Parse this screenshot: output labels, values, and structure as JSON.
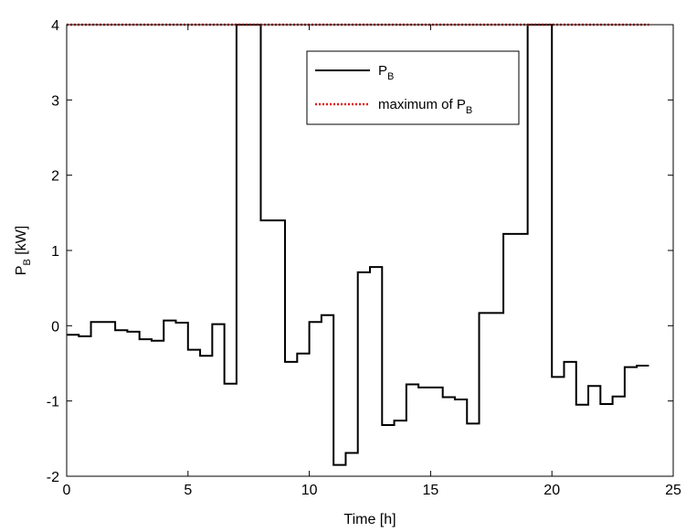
{
  "chart_data": {
    "type": "line",
    "step": true,
    "xlabel": "Time [h]",
    "ylabel": {
      "main": "P",
      "sub": "B",
      "unit": " [kW]"
    },
    "xlim": [
      0,
      25
    ],
    "ylim": [
      -2,
      4
    ],
    "xticks": [
      0,
      5,
      10,
      15,
      20,
      25
    ],
    "yticks": [
      -2,
      -1,
      0,
      1,
      2,
      3,
      4
    ],
    "grid": false,
    "legend_position": "top-center",
    "series": [
      {
        "legend": {
          "main": "P",
          "sub": "B"
        },
        "color": "#000000",
        "style": "solid",
        "x": [
          0,
          0.5,
          1,
          1.5,
          2,
          2.5,
          3,
          3.5,
          4,
          4.5,
          5,
          5.5,
          6,
          6.5,
          7,
          7.5,
          8,
          8.5,
          9,
          9.5,
          10,
          10.5,
          11,
          11.5,
          12,
          12.5,
          13,
          13.5,
          14,
          14.5,
          15,
          15.5,
          16,
          16.5,
          17,
          17.5,
          18,
          18.5,
          19,
          19.5,
          20,
          20.5,
          21,
          21.5,
          22,
          22.5,
          23,
          23.5,
          24
        ],
        "y": [
          -0.12,
          -0.14,
          0.05,
          0.05,
          -0.06,
          -0.08,
          -0.18,
          -0.2,
          0.07,
          0.04,
          -0.32,
          -0.4,
          0.02,
          -0.77,
          4,
          4,
          1.4,
          1.4,
          -0.48,
          -0.37,
          0.05,
          0.14,
          -1.85,
          -1.69,
          0.71,
          0.78,
          -1.32,
          -1.26,
          -0.78,
          -0.82,
          -0.82,
          -0.95,
          -0.98,
          -1.3,
          0.17,
          0.17,
          1.22,
          1.22,
          4,
          4,
          -0.68,
          -0.48,
          -1.05,
          -0.8,
          -1.04,
          -0.94,
          -0.55,
          -0.53,
          -0.53
        ]
      },
      {
        "legend": {
          "main": "maximum of P",
          "sub": "B"
        },
        "color": "#e41a1c",
        "style": "dotted",
        "x": [
          0,
          24
        ],
        "y": [
          4,
          4
        ]
      }
    ]
  }
}
